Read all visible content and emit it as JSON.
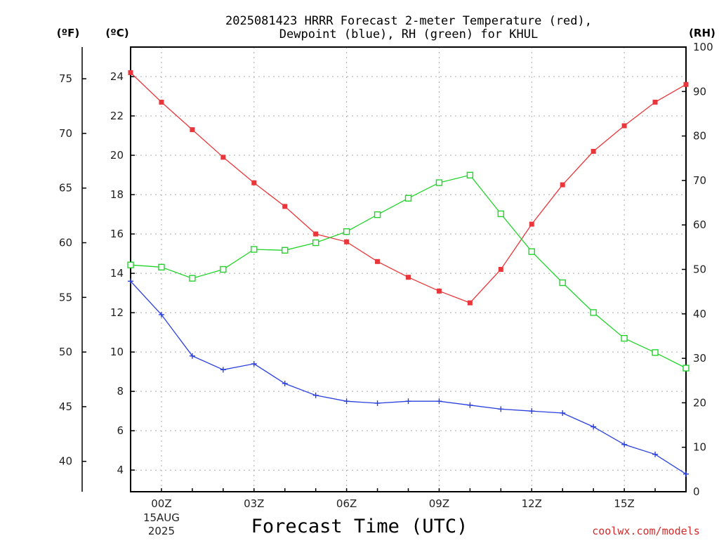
{
  "chart_data": {
    "type": "line",
    "title_line1": "2025081423 HRRR Forecast 2-meter Temperature (red),",
    "title_line2": "Dewpoint (blue), RH (green) for KHUL",
    "xlabel": "Forecast Time (UTC)",
    "credit": "coolwx.com/models",
    "units": {
      "fahrenheit": "(ºF)",
      "celsius": "(ºC)",
      "rh": "(RH)"
    },
    "x_hours": [
      -1,
      0,
      1,
      2,
      3,
      4,
      5,
      6,
      7,
      8,
      9,
      10,
      11,
      12,
      13,
      14,
      15,
      16,
      17
    ],
    "x_ticks": [
      {
        "hour": 0,
        "label": "00Z",
        "sub1": "15AUG",
        "sub2": "2025"
      },
      {
        "hour": 3,
        "label": "03Z"
      },
      {
        "hour": 6,
        "label": "06Z"
      },
      {
        "hour": 9,
        "label": "09Z"
      },
      {
        "hour": 12,
        "label": "12Z"
      },
      {
        "hour": 15,
        "label": "15Z"
      }
    ],
    "xlim": [
      -1,
      17
    ],
    "ylim_celsius": [
      2.9,
      25.5
    ],
    "ylim_rh": [
      0,
      100
    ],
    "celsius_ticks": [
      "4",
      "6",
      "8",
      "10",
      "12",
      "14",
      "16",
      "18",
      "20",
      "22",
      "24"
    ],
    "fahrenheit_ticks": [
      "40",
      "45",
      "50",
      "55",
      "60",
      "65",
      "70",
      "75"
    ],
    "rh_ticks": [
      "0",
      "10",
      "20",
      "30",
      "40",
      "50",
      "60",
      "70",
      "80",
      "90",
      "100"
    ],
    "series": [
      {
        "name": "Temperature",
        "axis": "celsius",
        "color": "#e8363a",
        "marker": "filled-square",
        "values": [
          24.2,
          22.7,
          21.3,
          19.9,
          18.6,
          17.4,
          16.0,
          15.6,
          14.6,
          13.8,
          13.1,
          12.5,
          14.2,
          16.5,
          18.5,
          20.2,
          21.5,
          22.7,
          23.6
        ]
      },
      {
        "name": "Dewpoint",
        "axis": "celsius",
        "color": "#2a3fe0",
        "marker": "plus",
        "values": [
          13.6,
          11.9,
          9.8,
          9.1,
          9.4,
          8.4,
          7.8,
          7.5,
          7.4,
          7.5,
          7.5,
          7.3,
          7.1,
          7.0,
          6.9,
          6.2,
          5.3,
          4.8,
          3.8
        ]
      },
      {
        "name": "RH",
        "axis": "rh",
        "color": "#22d42a",
        "marker": "open-square",
        "values": [
          51,
          50.5,
          48,
          50,
          54.5,
          54.3,
          56,
          58.5,
          62.3,
          66,
          69.5,
          71.2,
          62.5,
          54,
          47,
          40.3,
          34.5,
          31.3,
          27.8
        ]
      }
    ],
    "grid": true
  }
}
